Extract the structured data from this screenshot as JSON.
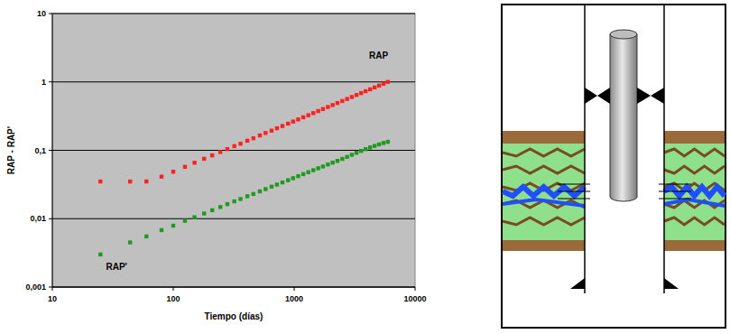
{
  "chart_data": {
    "type": "scatter",
    "x_label": "Tiempo (días)",
    "y_label": "RAP - RAP'",
    "log": true,
    "grid": true,
    "xlim": [
      10,
      10000
    ],
    "ylim": [
      0.001,
      10
    ],
    "xticks": [
      10,
      100,
      1000,
      10000
    ],
    "yticks": [
      {
        "value": 0.001,
        "label": "0,001"
      },
      {
        "value": 0.01,
        "label": "0,01"
      },
      {
        "value": 0.1,
        "label": "0,1"
      },
      {
        "value": 1,
        "label": "1"
      },
      {
        "value": 10,
        "label": "10"
      }
    ],
    "x": [
      25,
      44,
      60,
      80,
      100,
      125,
      150,
      180,
      210,
      245,
      280,
      320,
      360,
      410,
      460,
      520,
      580,
      650,
      720,
      800,
      890,
      980,
      1080,
      1190,
      1310,
      1440,
      1580,
      1730,
      1900,
      2080,
      2280,
      2500,
      2740,
      3000,
      3280,
      3580,
      3900,
      4250,
      4630,
      5040,
      5480,
      5950
    ],
    "series": [
      {
        "name": "RAP",
        "color": "#ff2020",
        "marker": "square",
        "label_x": 5000,
        "label_y": 2.2,
        "values": [
          0.035,
          0.035,
          0.035,
          0.0412,
          0.0486,
          0.0573,
          0.0657,
          0.0751,
          0.0842,
          0.0944,
          0.104,
          0.115,
          0.125,
          0.138,
          0.15,
          0.165,
          0.179,
          0.194,
          0.21,
          0.227,
          0.245,
          0.263,
          0.283,
          0.304,
          0.326,
          0.35,
          0.375,
          0.401,
          0.43,
          0.459,
          0.492,
          0.526,
          0.563,
          0.602,
          0.644,
          0.687,
          0.732,
          0.78,
          0.83,
          0.884,
          0.941,
          1.0
        ]
      },
      {
        "name": "RAP'",
        "color": "#1f9a1f",
        "marker": "square",
        "label_x": 34,
        "label_y": 0.0018,
        "values": [
          0.003,
          0.0045,
          0.0055,
          0.0068,
          0.0079,
          0.0093,
          0.0105,
          0.0119,
          0.0133,
          0.0148,
          0.0163,
          0.0179,
          0.0194,
          0.0213,
          0.023,
          0.0251,
          0.0271,
          0.0294,
          0.0315,
          0.0339,
          0.0365,
          0.0391,
          0.0419,
          0.0448,
          0.0479,
          0.0512,
          0.0546,
          0.058,
          0.062,
          0.066,
          0.07,
          0.075,
          0.08,
          0.086,
          0.092,
          0.098,
          0.104,
          0.11,
          0.116,
          0.122,
          0.128,
          0.133
        ]
      }
    ]
  }
}
